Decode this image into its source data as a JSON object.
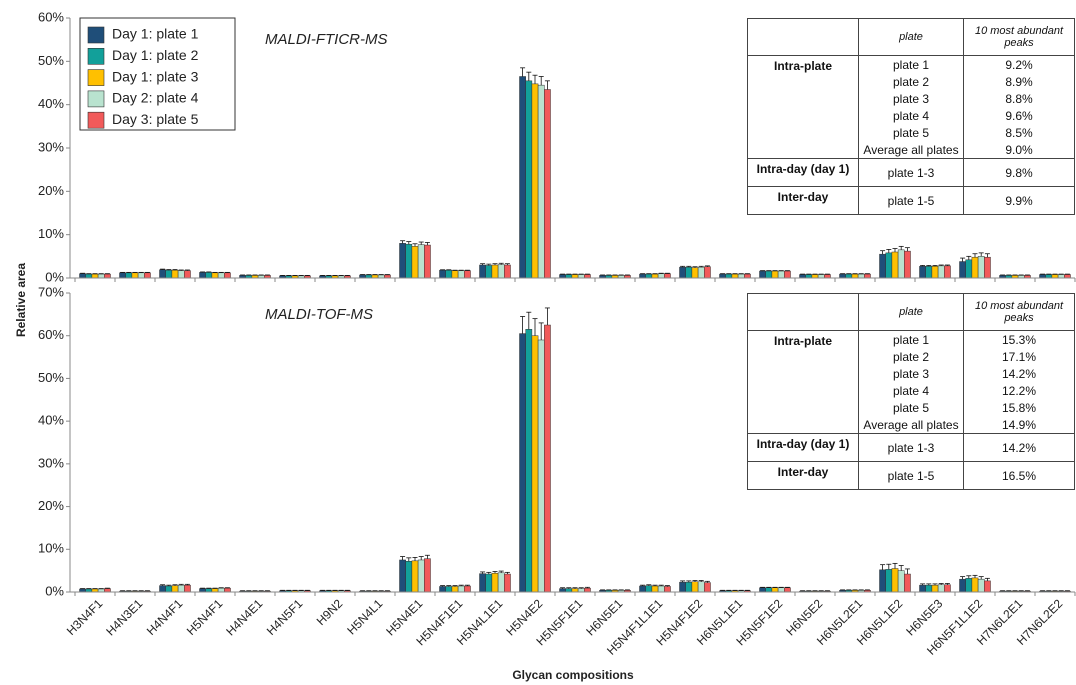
{
  "chart_data": [
    {
      "type": "bar",
      "annotation": "MALDI-FTICR-MS",
      "ylabel": "Relative area",
      "ylim": [
        0,
        60
      ],
      "yticks": [
        {
          "value": 0,
          "label": "0%"
        },
        {
          "value": 10,
          "label": "10%"
        },
        {
          "value": 20,
          "label": "20%"
        },
        {
          "value": 30,
          "label": "30%"
        },
        {
          "value": 40,
          "label": "40%"
        },
        {
          "value": 50,
          "label": "50%"
        },
        {
          "value": 60,
          "label": "60%"
        }
      ],
      "grid": false,
      "legend": "upper left",
      "series": [
        {
          "name": "Day 1: plate 1",
          "color": "#1f4e79",
          "values": [
            1.0,
            1.2,
            1.9,
            1.3,
            0.6,
            0.5,
            0.5,
            0.7,
            8.0,
            1.8,
            3.0,
            46.5,
            0.8,
            0.6,
            0.9,
            2.5,
            0.9,
            1.6,
            0.8,
            0.9,
            5.5,
            2.7,
            3.8,
            0.6,
            0.8
          ],
          "errors": [
            0.1,
            0.1,
            0.15,
            0.1,
            0.1,
            0.1,
            0.1,
            0.1,
            0.6,
            0.1,
            0.3,
            2.0,
            0.1,
            0.1,
            0.1,
            0.2,
            0.1,
            0.1,
            0.1,
            0.1,
            0.8,
            0.2,
            0.8,
            0.1,
            0.1
          ]
        },
        {
          "name": "Day 1: plate 2",
          "color": "#12a09a",
          "values": [
            0.9,
            1.2,
            1.8,
            1.3,
            0.6,
            0.5,
            0.5,
            0.7,
            7.8,
            1.8,
            2.9,
            45.5,
            0.8,
            0.6,
            0.9,
            2.5,
            0.9,
            1.6,
            0.8,
            0.9,
            5.8,
            2.7,
            4.2,
            0.6,
            0.8
          ],
          "errors": [
            0.1,
            0.1,
            0.15,
            0.1,
            0.1,
            0.1,
            0.1,
            0.1,
            0.6,
            0.1,
            0.3,
            2.0,
            0.1,
            0.1,
            0.1,
            0.2,
            0.1,
            0.1,
            0.1,
            0.1,
            0.8,
            0.2,
            0.8,
            0.1,
            0.1
          ]
        },
        {
          "name": "Day 1: plate 3",
          "color": "#ffc000",
          "values": [
            0.9,
            1.2,
            1.8,
            1.2,
            0.6,
            0.5,
            0.5,
            0.7,
            7.3,
            1.7,
            3.0,
            44.8,
            0.8,
            0.6,
            0.9,
            2.4,
            0.9,
            1.6,
            0.8,
            0.9,
            6.0,
            2.7,
            4.8,
            0.6,
            0.8
          ],
          "errors": [
            0.1,
            0.1,
            0.15,
            0.1,
            0.1,
            0.1,
            0.1,
            0.1,
            0.6,
            0.1,
            0.3,
            2.0,
            0.1,
            0.1,
            0.1,
            0.2,
            0.1,
            0.1,
            0.1,
            0.1,
            0.8,
            0.2,
            0.8,
            0.1,
            0.1
          ]
        },
        {
          "name": "Day 2: plate 4",
          "color": "#b9e3cf",
          "values": [
            0.9,
            1.2,
            1.7,
            1.2,
            0.6,
            0.5,
            0.5,
            0.7,
            7.7,
            1.7,
            3.1,
            44.5,
            0.8,
            0.6,
            1.0,
            2.5,
            0.9,
            1.6,
            0.8,
            0.9,
            6.5,
            2.8,
            5.0,
            0.6,
            0.8
          ],
          "errors": [
            0.1,
            0.1,
            0.15,
            0.1,
            0.1,
            0.1,
            0.1,
            0.1,
            0.6,
            0.1,
            0.3,
            2.0,
            0.1,
            0.1,
            0.1,
            0.2,
            0.1,
            0.1,
            0.1,
            0.1,
            0.8,
            0.2,
            0.8,
            0.1,
            0.1
          ]
        },
        {
          "name": "Day 3: plate 5",
          "color": "#f15a5a",
          "values": [
            0.9,
            1.2,
            1.7,
            1.2,
            0.6,
            0.5,
            0.5,
            0.7,
            7.6,
            1.7,
            3.0,
            43.5,
            0.8,
            0.6,
            1.0,
            2.6,
            0.9,
            1.6,
            0.8,
            0.9,
            6.2,
            2.8,
            4.8,
            0.6,
            0.8
          ],
          "errors": [
            0.1,
            0.1,
            0.15,
            0.1,
            0.1,
            0.1,
            0.1,
            0.1,
            0.6,
            0.1,
            0.3,
            2.0,
            0.1,
            0.1,
            0.1,
            0.2,
            0.1,
            0.1,
            0.1,
            0.1,
            0.8,
            0.2,
            0.8,
            0.1,
            0.1
          ]
        }
      ],
      "table": {
        "header": [
          "plate",
          "10 most abundant peaks"
        ],
        "groups": [
          {
            "label": "Intra-plate",
            "rows": [
              [
                "plate 1",
                "9.2%"
              ],
              [
                "plate 2",
                "8.9%"
              ],
              [
                "plate 3",
                "8.8%"
              ],
              [
                "plate 4",
                "9.6%"
              ],
              [
                "plate 5",
                "8.5%"
              ],
              [
                "Average all plates",
                "9.0%"
              ]
            ]
          },
          {
            "label": "Intra-day (day 1)",
            "rows": [
              [
                "plate 1-3",
                "9.8%"
              ]
            ]
          },
          {
            "label": "Inter-day",
            "rows": [
              [
                "plate 1-5",
                "9.9%"
              ]
            ]
          }
        ]
      }
    },
    {
      "type": "bar",
      "annotation": "MALDI-TOF-MS",
      "xlabel": "Glycan compositions",
      "categories": [
        "H3N4F1",
        "H4N3E1",
        "H4N4F1",
        "H5N4F1",
        "H4N4E1",
        "H4N5F1",
        "H9N2",
        "H5N4L1",
        "H5N4E1",
        "H5N4F1E1",
        "H5N4L1E1",
        "H5N4E2",
        "H5N5F1E1",
        "H6N5E1",
        "H5N4F1L1E1",
        "H5N4F1E2",
        "H6N5L1E1",
        "H5N5F1E2",
        "H6N5E2",
        "H6N5L2E1",
        "H6N5L1E2",
        "H6N5E3",
        "H6N5F1L1E2",
        "H7N6L2E1",
        "H7N6L2E2"
      ],
      "ylim": [
        0,
        70
      ],
      "yticks": [
        {
          "value": 0,
          "label": "0%"
        },
        {
          "value": 10,
          "label": "10%"
        },
        {
          "value": 20,
          "label": "20%"
        },
        {
          "value": 30,
          "label": "30%"
        },
        {
          "value": 40,
          "label": "40%"
        },
        {
          "value": 50,
          "label": "50%"
        },
        {
          "value": 60,
          "label": "60%"
        },
        {
          "value": 70,
          "label": "70%"
        }
      ],
      "grid": false,
      "series": [
        {
          "color": "#1f4e79",
          "values": [
            0.7,
            0.2,
            1.5,
            0.8,
            0.2,
            0.3,
            0.3,
            0.2,
            7.5,
            1.3,
            4.3,
            60.5,
            0.8,
            0.4,
            1.4,
            2.3,
            0.3,
            1.0,
            0.2,
            0.4,
            5.2,
            1.6,
            3.0,
            0.2,
            0.2
          ],
          "errors": [
            0.1,
            0.1,
            0.2,
            0.1,
            0.1,
            0.1,
            0.1,
            0.1,
            0.8,
            0.2,
            0.4,
            4.0,
            0.2,
            0.1,
            0.2,
            0.3,
            0.1,
            0.1,
            0.1,
            0.1,
            1.2,
            0.3,
            0.6,
            0.1,
            0.1
          ]
        },
        {
          "color": "#12a09a",
          "values": [
            0.7,
            0.2,
            1.4,
            0.8,
            0.2,
            0.3,
            0.3,
            0.2,
            7.2,
            1.3,
            4.2,
            61.5,
            0.8,
            0.4,
            1.5,
            2.3,
            0.3,
            1.0,
            0.2,
            0.4,
            5.3,
            1.6,
            3.2,
            0.2,
            0.2
          ],
          "errors": [
            0.1,
            0.1,
            0.2,
            0.1,
            0.1,
            0.1,
            0.1,
            0.1,
            0.8,
            0.2,
            0.4,
            4.0,
            0.2,
            0.1,
            0.2,
            0.3,
            0.1,
            0.1,
            0.1,
            0.1,
            1.2,
            0.3,
            0.6,
            0.1,
            0.1
          ]
        },
        {
          "color": "#ffc000",
          "values": [
            0.7,
            0.2,
            1.5,
            0.8,
            0.2,
            0.3,
            0.3,
            0.2,
            7.3,
            1.3,
            4.4,
            60.0,
            0.8,
            0.4,
            1.4,
            2.4,
            0.3,
            1.0,
            0.2,
            0.4,
            5.5,
            1.6,
            3.3,
            0.2,
            0.2
          ],
          "errors": [
            0.1,
            0.1,
            0.2,
            0.1,
            0.1,
            0.1,
            0.1,
            0.1,
            0.8,
            0.2,
            0.4,
            4.0,
            0.2,
            0.1,
            0.2,
            0.3,
            0.1,
            0.1,
            0.1,
            0.1,
            1.2,
            0.3,
            0.6,
            0.1,
            0.1
          ]
        },
        {
          "color": "#b9e3cf",
          "values": [
            0.7,
            0.2,
            1.6,
            0.9,
            0.2,
            0.3,
            0.3,
            0.2,
            7.5,
            1.4,
            4.5,
            59.0,
            0.8,
            0.4,
            1.4,
            2.4,
            0.3,
            1.0,
            0.2,
            0.4,
            5.0,
            1.7,
            3.0,
            0.2,
            0.2
          ],
          "errors": [
            0.1,
            0.1,
            0.2,
            0.1,
            0.1,
            0.1,
            0.1,
            0.1,
            0.8,
            0.2,
            0.4,
            4.0,
            0.2,
            0.1,
            0.2,
            0.3,
            0.1,
            0.1,
            0.1,
            0.1,
            1.2,
            0.3,
            0.6,
            0.1,
            0.1
          ]
        },
        {
          "color": "#f15a5a",
          "values": [
            0.8,
            0.2,
            1.6,
            0.9,
            0.2,
            0.3,
            0.3,
            0.2,
            7.8,
            1.4,
            4.2,
            62.5,
            0.9,
            0.4,
            1.3,
            2.2,
            0.3,
            1.0,
            0.2,
            0.4,
            4.2,
            1.7,
            2.6,
            0.2,
            0.2
          ],
          "errors": [
            0.1,
            0.1,
            0.2,
            0.1,
            0.1,
            0.1,
            0.1,
            0.1,
            0.8,
            0.2,
            0.4,
            4.0,
            0.2,
            0.1,
            0.2,
            0.3,
            0.1,
            0.1,
            0.1,
            0.1,
            1.2,
            0.3,
            0.6,
            0.1,
            0.1
          ]
        }
      ],
      "table": {
        "header": [
          "plate",
          "10 most abundant peaks"
        ],
        "groups": [
          {
            "label": "Intra-plate",
            "rows": [
              [
                "plate 1",
                "15.3%"
              ],
              [
                "plate 2",
                "17.1%"
              ],
              [
                "plate 3",
                "14.2%"
              ],
              [
                "plate 4",
                "12.2%"
              ],
              [
                "plate 5",
                "15.8%"
              ],
              [
                "Average all plates",
                "14.9%"
              ]
            ]
          },
          {
            "label": "Intra-day (day 1)",
            "rows": [
              [
                "plate 1-3",
                "14.2%"
              ]
            ]
          },
          {
            "label": "Inter-day",
            "rows": [
              [
                "plate 1-5",
                "16.5%"
              ]
            ]
          }
        ]
      }
    }
  ]
}
